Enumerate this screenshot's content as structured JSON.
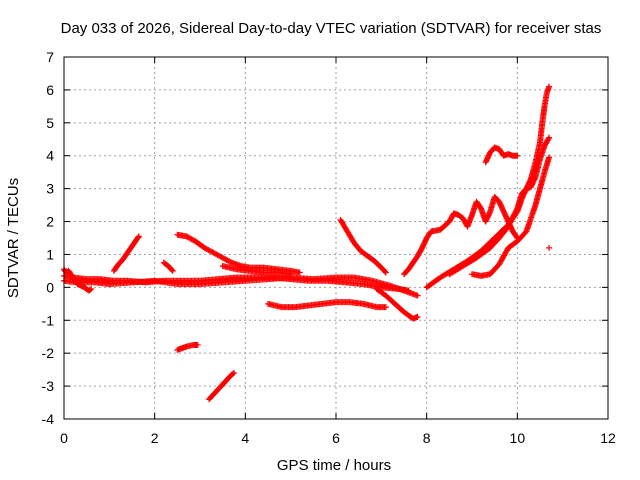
{
  "chart_data": {
    "type": "scatter",
    "title": "Day 033 of 2026, Sidereal Day-to-day VTEC variation (SDTVAR) for receiver stas",
    "xlabel": "GPS time / hours",
    "ylabel": "SDTVAR / TECUs",
    "xlim": [
      0,
      12
    ],
    "ylim": [
      -4,
      7
    ],
    "xticks": [
      "0",
      "2",
      "4",
      "6",
      "8",
      "10",
      "12"
    ],
    "yticks": [
      "-4",
      "-3",
      "-2",
      "-1",
      "0",
      "1",
      "2",
      "3",
      "4",
      "5",
      "6",
      "7"
    ],
    "grid": true,
    "marker": "+",
    "color": "#ff0000",
    "series": [
      {
        "points": [
          [
            0.0,
            0.35
          ],
          [
            0.2,
            0.3
          ],
          [
            0.5,
            0.25
          ],
          [
            0.8,
            0.25
          ],
          [
            1.1,
            0.2
          ],
          [
            1.4,
            0.2
          ],
          [
            1.8,
            0.15
          ],
          [
            2.2,
            0.2
          ],
          [
            2.6,
            0.2
          ],
          [
            3.0,
            0.2
          ],
          [
            3.4,
            0.25
          ],
          [
            3.8,
            0.3
          ],
          [
            4.2,
            0.3
          ],
          [
            4.6,
            0.3
          ],
          [
            5.0,
            0.25
          ],
          [
            5.4,
            0.2
          ],
          [
            5.8,
            0.2
          ],
          [
            6.2,
            0.15
          ],
          [
            6.6,
            0.1
          ],
          [
            7.0,
            0.0
          ],
          [
            7.4,
            -0.05
          ],
          [
            7.6,
            -0.1
          ]
        ]
      },
      {
        "points": [
          [
            0.0,
            0.2
          ],
          [
            0.3,
            0.15
          ],
          [
            0.7,
            0.15
          ],
          [
            1.0,
            0.1
          ],
          [
            1.5,
            0.15
          ],
          [
            2.0,
            0.2
          ],
          [
            2.5,
            0.1
          ],
          [
            3.0,
            0.1
          ],
          [
            3.5,
            0.15
          ],
          [
            4.0,
            0.2
          ],
          [
            4.5,
            0.25
          ],
          [
            5.0,
            0.3
          ],
          [
            5.5,
            0.25
          ],
          [
            6.0,
            0.3
          ],
          [
            6.4,
            0.3
          ],
          [
            6.8,
            0.2
          ],
          [
            7.2,
            0.05
          ],
          [
            7.5,
            -0.1
          ],
          [
            7.8,
            -0.25
          ]
        ]
      },
      {
        "points": [
          [
            0.0,
            0.55
          ],
          [
            0.05,
            0.45
          ],
          [
            0.1,
            0.5
          ],
          [
            0.2,
            0.3
          ],
          [
            0.3,
            0.1
          ],
          [
            0.45,
            0.0
          ],
          [
            0.55,
            -0.1
          ],
          [
            0.6,
            -0.05
          ]
        ]
      },
      {
        "points": [
          [
            1.1,
            0.5
          ],
          [
            1.2,
            0.7
          ],
          [
            1.3,
            0.85
          ],
          [
            1.4,
            1.05
          ],
          [
            1.5,
            1.25
          ],
          [
            1.6,
            1.45
          ],
          [
            1.65,
            1.55
          ]
        ]
      },
      {
        "points": [
          [
            2.2,
            0.75
          ],
          [
            2.3,
            0.65
          ],
          [
            2.4,
            0.5
          ]
        ]
      },
      {
        "points": [
          [
            2.5,
            1.6
          ],
          [
            2.7,
            1.55
          ],
          [
            2.9,
            1.4
          ],
          [
            3.1,
            1.2
          ],
          [
            3.3,
            1.05
          ],
          [
            3.5,
            0.9
          ],
          [
            3.7,
            0.75
          ],
          [
            3.9,
            0.65
          ],
          [
            4.1,
            0.6
          ],
          [
            4.4,
            0.6
          ],
          [
            4.7,
            0.55
          ],
          [
            5.0,
            0.5
          ],
          [
            5.2,
            0.45
          ]
        ]
      },
      {
        "points": [
          [
            3.5,
            0.65
          ],
          [
            3.8,
            0.55
          ],
          [
            4.1,
            0.5
          ],
          [
            4.4,
            0.45
          ],
          [
            4.7,
            0.45
          ],
          [
            5.0,
            0.4
          ]
        ]
      },
      {
        "points": [
          [
            4.5,
            -0.5
          ],
          [
            4.8,
            -0.6
          ],
          [
            5.1,
            -0.6
          ],
          [
            5.4,
            -0.55
          ],
          [
            5.7,
            -0.5
          ],
          [
            6.0,
            -0.45
          ],
          [
            6.3,
            -0.45
          ],
          [
            6.6,
            -0.5
          ],
          [
            6.9,
            -0.6
          ],
          [
            7.1,
            -0.6
          ]
        ]
      },
      {
        "points": [
          [
            6.1,
            2.05
          ],
          [
            6.25,
            1.7
          ],
          [
            6.4,
            1.35
          ],
          [
            6.55,
            1.1
          ],
          [
            6.7,
            0.95
          ],
          [
            6.85,
            0.8
          ],
          [
            7.0,
            0.6
          ],
          [
            7.1,
            0.45
          ]
        ]
      },
      {
        "points": [
          [
            6.9,
            -0.05
          ],
          [
            7.1,
            -0.25
          ],
          [
            7.3,
            -0.5
          ],
          [
            7.5,
            -0.75
          ],
          [
            7.7,
            -0.95
          ],
          [
            7.8,
            -0.9
          ]
        ]
      },
      {
        "points": [
          [
            7.5,
            0.4
          ],
          [
            7.6,
            0.55
          ],
          [
            7.7,
            0.75
          ],
          [
            7.8,
            0.95
          ],
          [
            7.9,
            1.2
          ],
          [
            8.0,
            1.5
          ],
          [
            8.1,
            1.7
          ],
          [
            8.3,
            1.75
          ],
          [
            8.5,
            2.0
          ],
          [
            8.6,
            2.25
          ],
          [
            8.7,
            2.2
          ],
          [
            8.8,
            2.1
          ],
          [
            8.9,
            1.85
          ],
          [
            9.0,
            2.2
          ],
          [
            9.1,
            2.6
          ],
          [
            9.2,
            2.4
          ],
          [
            9.3,
            2.0
          ],
          [
            9.4,
            2.3
          ],
          [
            9.5,
            2.75
          ],
          [
            9.6,
            2.6
          ],
          [
            9.7,
            2.3
          ],
          [
            9.8,
            2.0
          ],
          [
            9.9,
            1.7
          ],
          [
            10.0,
            1.5
          ]
        ]
      },
      {
        "points": [
          [
            9.3,
            3.8
          ],
          [
            9.4,
            4.1
          ],
          [
            9.5,
            4.25
          ],
          [
            9.6,
            4.2
          ],
          [
            9.7,
            4.0
          ],
          [
            9.8,
            4.05
          ],
          [
            9.9,
            4.0
          ],
          [
            10.0,
            4.0
          ]
        ]
      },
      {
        "points": [
          [
            8.0,
            0.0
          ],
          [
            8.3,
            0.3
          ],
          [
            8.6,
            0.55
          ],
          [
            8.9,
            0.8
          ],
          [
            9.2,
            1.1
          ],
          [
            9.5,
            1.5
          ],
          [
            9.8,
            1.9
          ],
          [
            10.0,
            2.3
          ],
          [
            10.1,
            2.7
          ],
          [
            10.2,
            3.0
          ],
          [
            10.3,
            3.3
          ],
          [
            10.4,
            3.8
          ],
          [
            10.5,
            4.4
          ],
          [
            10.55,
            5.0
          ],
          [
            10.6,
            5.5
          ],
          [
            10.65,
            5.9
          ],
          [
            10.7,
            6.1
          ]
        ]
      },
      {
        "points": [
          [
            8.5,
            0.4
          ],
          [
            8.8,
            0.65
          ],
          [
            9.1,
            0.9
          ],
          [
            9.4,
            1.2
          ],
          [
            9.6,
            1.5
          ],
          [
            9.8,
            1.85
          ],
          [
            10.0,
            2.4
          ],
          [
            10.1,
            2.85
          ],
          [
            10.2,
            3.0
          ],
          [
            10.3,
            3.05
          ],
          [
            10.4,
            3.35
          ],
          [
            10.5,
            3.9
          ],
          [
            10.6,
            4.3
          ],
          [
            10.7,
            4.55
          ]
        ]
      },
      {
        "points": [
          [
            9.0,
            0.4
          ],
          [
            9.2,
            0.35
          ],
          [
            9.4,
            0.4
          ],
          [
            9.6,
            0.7
          ],
          [
            9.8,
            1.2
          ],
          [
            10.0,
            1.4
          ],
          [
            10.2,
            1.7
          ],
          [
            10.4,
            2.5
          ],
          [
            10.5,
            3.0
          ],
          [
            10.6,
            3.5
          ],
          [
            10.7,
            3.95
          ]
        ]
      },
      {
        "points": [
          [
            10.7,
            1.2
          ]
        ]
      },
      {
        "points": [
          [
            2.5,
            -1.9
          ],
          [
            2.6,
            -1.85
          ],
          [
            2.7,
            -1.8
          ],
          [
            2.85,
            -1.75
          ],
          [
            2.95,
            -1.75
          ]
        ]
      },
      {
        "points": [
          [
            3.2,
            -3.4
          ],
          [
            3.3,
            -3.25
          ],
          [
            3.4,
            -3.1
          ],
          [
            3.5,
            -2.95
          ],
          [
            3.6,
            -2.8
          ],
          [
            3.7,
            -2.65
          ],
          [
            3.75,
            -2.6
          ]
        ]
      }
    ]
  }
}
